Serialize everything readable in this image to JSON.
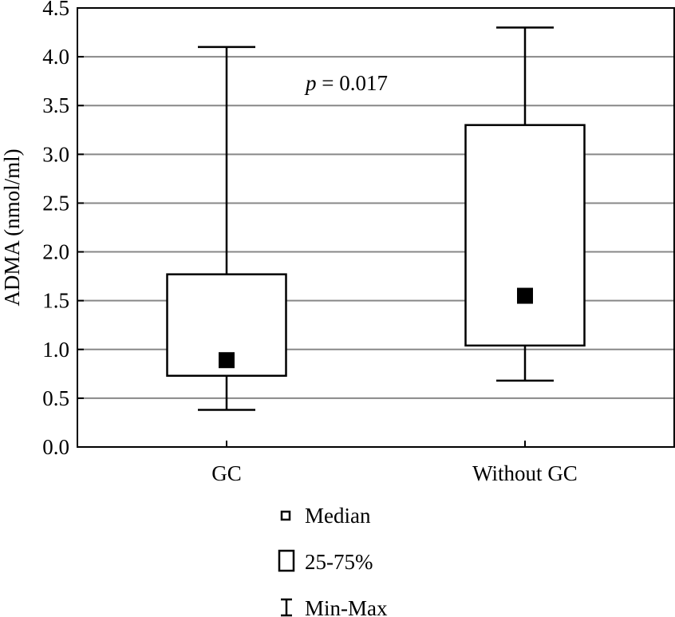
{
  "chart_data": {
    "type": "box",
    "title": "",
    "xlabel": "",
    "ylabel": "ADMA (nmol/ml)",
    "ylim": [
      0,
      4.5
    ],
    "yticks": [
      "0.0",
      "0.5",
      "1.0",
      "1.5",
      "2.0",
      "2.5",
      "3.0",
      "3.5",
      "4.0",
      "4.5"
    ],
    "grid": true,
    "categories": [
      "GC",
      "Without GC"
    ],
    "series": [
      {
        "name": "GC",
        "min": 0.38,
        "q1": 0.73,
        "median": 0.89,
        "q3": 1.77,
        "max": 4.1
      },
      {
        "name": "Without GC",
        "min": 0.68,
        "q1": 1.04,
        "median": 1.55,
        "q3": 3.3,
        "max": 4.3
      }
    ],
    "annotation": {
      "italic": "p",
      "text": " = 0.017"
    },
    "legend": {
      "position": "bottom",
      "items": [
        "Median",
        "25-75%",
        "Min-Max"
      ]
    }
  }
}
